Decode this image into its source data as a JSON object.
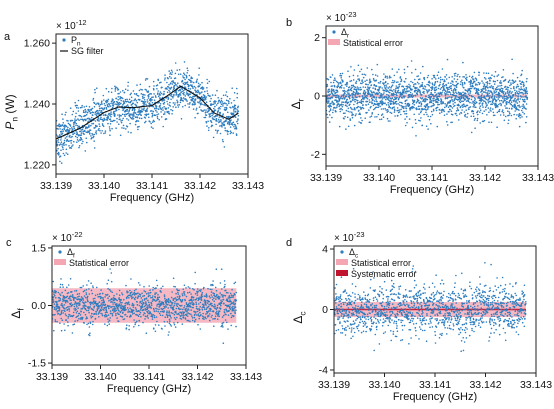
{
  "chart_data": [
    {
      "panel_label": "a",
      "type": "scatter",
      "x_tick_labels": [
        "33.139",
        "33.140",
        "33.141",
        "33.142",
        "33.143"
      ],
      "y_tick_labels": [
        "1.220",
        "1.240",
        "1.260"
      ],
      "xlabel": "Frequency (GHz)",
      "ylabel": "P_n (W)",
      "offset_text": "× 10^-12",
      "legend": [
        "P_n",
        "SG filter"
      ],
      "legend_position": "top-left",
      "xlim": [
        33.139,
        33.143
      ],
      "ylim": [
        1.217,
        1.263
      ],
      "colors": {
        "points": "#2e7dbf",
        "filter": "#111111"
      },
      "series": [
        {
          "name": "P_n",
          "kind": "scatter",
          "count": 1500,
          "noise": 0.0035
        },
        {
          "name": "SG filter",
          "kind": "line",
          "x": [
            33.139,
            33.1395,
            33.14,
            33.1403,
            33.1406,
            33.141,
            33.1413,
            33.1416,
            33.142,
            33.1423,
            33.1426,
            33.1428
          ],
          "y": [
            1.2285,
            1.232,
            1.2372,
            1.239,
            1.2388,
            1.2395,
            1.2425,
            1.2458,
            1.242,
            1.237,
            1.235,
            1.237
          ]
        }
      ]
    },
    {
      "panel_label": "b",
      "type": "scatter",
      "x_tick_labels": [
        "33.139",
        "33.140",
        "33.141",
        "33.142",
        "33.143"
      ],
      "y_tick_labels": [
        "-2",
        "0",
        "2"
      ],
      "xlabel": "Frequency (GHz)",
      "ylabel": "Δ_r",
      "offset_text": "× 10^-23",
      "legend": [
        "Δ_r",
        "Statistical error"
      ],
      "legend_position": "top-left",
      "xlim": [
        33.139,
        33.143
      ],
      "ylim": [
        -2.4,
        2.4
      ],
      "colors": {
        "points": "#2e7dbf",
        "stat_band": "#f4a6b3"
      },
      "series": [
        {
          "name": "Δ_r",
          "kind": "scatter",
          "count": 2000,
          "center": 0,
          "noise": 0.38
        },
        {
          "name": "Statistical error",
          "kind": "band",
          "low": -0.05,
          "high": 0.05
        }
      ]
    },
    {
      "panel_label": "c",
      "type": "scatter",
      "x_tick_labels": [
        "33.139",
        "33.140",
        "33.141",
        "33.142",
        "33.143"
      ],
      "y_tick_labels": [
        "-1.5",
        "0.0",
        "1.5"
      ],
      "xlabel": "Frequency (GHz)",
      "ylabel": "Δ_f",
      "offset_text": "× 10^-22",
      "legend": [
        "Δ_f",
        "Statistical error"
      ],
      "legend_position": "top-left",
      "xlim": [
        33.139,
        33.143
      ],
      "ylim": [
        -1.55,
        1.55
      ],
      "colors": {
        "points": "#2e7dbf",
        "stat_band": "#f4a6b3"
      },
      "series": [
        {
          "name": "Δ_f",
          "kind": "scatter",
          "count": 1400,
          "center": 0,
          "noise": 0.28
        },
        {
          "name": "Statistical error",
          "kind": "band",
          "low": -0.45,
          "high": 0.45
        }
      ]
    },
    {
      "panel_label": "d",
      "type": "scatter",
      "x_tick_labels": [
        "33.139",
        "33.140",
        "33.141",
        "33.142",
        "33.143"
      ],
      "y_tick_labels": [
        "-4",
        "0",
        "4"
      ],
      "xlabel": "Frequency (GHz)",
      "ylabel": "Δ_c",
      "offset_text": "× 10^-23",
      "legend": [
        "Δ_c",
        "Statistical error",
        "Systematic error"
      ],
      "legend_position": "top-left",
      "xlim": [
        33.139,
        33.143
      ],
      "ylim": [
        -4.2,
        4.2
      ],
      "colors": {
        "points": "#2e7dbf",
        "stat_band": "#f4a6b3",
        "sys_band": "#c0142e"
      },
      "series": [
        {
          "name": "Δ_c",
          "kind": "scatter",
          "count": 1400,
          "center": 0,
          "noise": 0.9
        },
        {
          "name": "Statistical error",
          "kind": "band",
          "low": -0.5,
          "high": 0.5
        },
        {
          "name": "Systematic error",
          "kind": "band",
          "low": -0.05,
          "high": 0.05
        }
      ]
    }
  ]
}
